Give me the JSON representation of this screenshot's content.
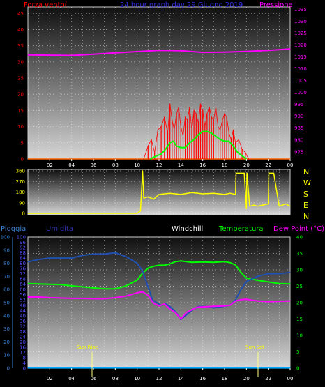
{
  "header": {
    "left_label": "Forza vento(",
    "title": "24 hour graph day 29 Giugno 2019",
    "right_label": "Pressione"
  },
  "legend": {
    "pioggia": "Pioggia",
    "umidita": "Umidita",
    "windchill": "Windchill",
    "temperatura": "Temperatura",
    "dew_point": "Dew Point (°C)"
  },
  "markers": {
    "sun_rise": "Sun Rise",
    "sun_set": "Sun Set"
  },
  "compass_letters": [
    "N",
    "W",
    "S",
    "E",
    "N"
  ],
  "colors": {
    "wind": "#ff0000",
    "wind_avg": "#00ff00",
    "pressure": "#ff00ff",
    "wind_dir": "#ffff00",
    "humidity": "#2050b0",
    "temperature": "#00ff00",
    "dew_point": "#ff00ff",
    "windchill": "#ffffff",
    "rain": "#00aaff",
    "rain_axis": "#3a7fd0",
    "hum_axis": "#5050ff"
  },
  "chart_data": [
    {
      "type": "line",
      "name": "wind-pressure",
      "x_ticks": [
        "02",
        "04",
        "06",
        "08",
        "10",
        "12",
        "14",
        "16",
        "18",
        "20",
        "22",
        "00"
      ],
      "y_left": {
        "ticks": [
          0,
          5,
          10,
          15,
          20,
          25,
          30,
          35,
          40,
          45
        ],
        "range": [
          0,
          47
        ]
      },
      "y_right": {
        "ticks": [
          975,
          980,
          985,
          990,
          995,
          1000,
          1005,
          1010,
          1015,
          1020,
          1025,
          1030,
          1035
        ],
        "range": [
          972,
          1036
        ]
      },
      "series": [
        {
          "key": "pressure",
          "axis": "right",
          "x": [
            0,
            2,
            4,
            6,
            8,
            10,
            12,
            14,
            16,
            18,
            20,
            22,
            24
          ],
          "y": [
            1015.8,
            1015.7,
            1015.6,
            1016.1,
            1016.7,
            1017.2,
            1017.7,
            1017.6,
            1016.9,
            1017.0,
            1017.3,
            1017.7,
            1018.3
          ]
        },
        {
          "key": "wind_avg",
          "axis": "left",
          "x": [
            11.2,
            11.8,
            12.2,
            12.6,
            13.0,
            13.3,
            13.6,
            14.0,
            14.4,
            14.8,
            15.2,
            15.6,
            16.0,
            16.4,
            16.8,
            17.2,
            17.6,
            18.0,
            18.4,
            18.8,
            19.2,
            19.6,
            20.0
          ],
          "y": [
            0,
            1,
            1.5,
            3,
            5,
            5.5,
            4,
            3.5,
            3.5,
            5,
            6,
            7.5,
            8.5,
            8.5,
            8,
            7,
            6,
            5.5,
            5.5,
            4,
            2,
            1,
            0
          ]
        },
        {
          "key": "wind",
          "axis": "left",
          "x": [
            10.6,
            11.0,
            11.3,
            11.6,
            11.9,
            12.2,
            12.5,
            12.8,
            13.0,
            13.2,
            13.4,
            13.6,
            13.8,
            14.0,
            14.2,
            14.4,
            14.6,
            14.8,
            15.0,
            15.2,
            15.4,
            15.6,
            15.8,
            16.0,
            16.2,
            16.4,
            16.6,
            16.8,
            17.0,
            17.2,
            17.4,
            17.6,
            17.8,
            18.0,
            18.2,
            18.4,
            18.6,
            18.8,
            19.0,
            19.3,
            19.6,
            19.9,
            20.2
          ],
          "y": [
            0,
            4,
            6,
            2,
            9,
            10,
            13,
            8,
            17,
            12,
            9,
            14,
            16,
            10,
            7,
            13,
            12,
            16,
            9,
            15,
            14,
            11,
            17,
            15,
            10,
            14,
            16,
            13,
            12,
            16,
            10,
            9,
            12,
            14,
            13,
            8,
            6,
            9,
            5,
            6,
            3,
            2,
            0
          ]
        }
      ]
    },
    {
      "type": "line",
      "name": "wind-direction",
      "y_ticks": [
        0,
        90,
        180,
        270,
        360
      ],
      "y_range": [
        0,
        360
      ],
      "series": [
        {
          "key": "wind_dir",
          "x": [
            0,
            10.0,
            10.3,
            10.5,
            10.6,
            11.0,
            11.5,
            12.0,
            13.0,
            14.0,
            15.0,
            16.0,
            17.0,
            18.0,
            18.5,
            19.0,
            19.05,
            19.3,
            19.5,
            19.8,
            20.0,
            20.05,
            20.3,
            20.7,
            21.0,
            21.5,
            22.0,
            22.05,
            22.5,
            23.0,
            23.3,
            23.6,
            24.0
          ],
          "y": [
            0,
            0,
            20,
            360,
            130,
            140,
            120,
            160,
            170,
            160,
            175,
            165,
            170,
            160,
            170,
            160,
            340,
            340,
            340,
            340,
            40,
            340,
            60,
            70,
            60,
            70,
            80,
            340,
            340,
            60,
            70,
            80,
            60
          ]
        }
      ]
    },
    {
      "type": "line",
      "name": "temp-hum-rain",
      "x_ticks": [
        "02",
        "04",
        "06",
        "08",
        "10",
        "12",
        "14",
        "16",
        "18",
        "20",
        "22",
        "00"
      ],
      "y_rain": {
        "ticks": [
          0,
          10,
          20,
          30,
          40,
          50,
          60,
          70,
          80,
          90,
          100
        ],
        "range": [
          0,
          100
        ]
      },
      "y_hum": {
        "ticks": [
          0,
          4,
          8,
          12,
          16,
          20,
          24,
          28,
          32,
          36,
          40,
          44,
          48,
          52,
          56,
          60,
          64,
          68,
          72,
          76,
          80,
          84,
          88,
          92,
          96,
          100
        ],
        "range": [
          0,
          100
        ]
      },
      "y_temp": {
        "ticks": [
          0,
          5,
          10,
          15,
          20,
          25,
          30,
          35,
          40
        ],
        "range": [
          0,
          40
        ]
      },
      "series": [
        {
          "key": "humidity",
          "axis": "hum",
          "x": [
            0,
            1,
            2,
            3,
            4,
            5,
            6,
            7,
            8,
            9,
            10,
            10.5,
            11,
            11.4,
            11.8,
            12.2,
            12.6,
            13.0,
            13.4,
            13.8,
            14.0,
            14.4,
            15.0,
            15.6,
            16.2,
            17.0,
            17.8,
            18.5,
            19.0,
            19.5,
            20.0,
            21.0,
            22.0,
            23.0,
            24.0
          ],
          "y": [
            81,
            83,
            84,
            84,
            84,
            86,
            87,
            87,
            88,
            85,
            80,
            74,
            62,
            52,
            50,
            48,
            49,
            47,
            44,
            40,
            37,
            40,
            44,
            47,
            47,
            46,
            47,
            48,
            52,
            60,
            66,
            70,
            72,
            72,
            73
          ]
        },
        {
          "key": "dew_point",
          "axis": "temp",
          "x": [
            0,
            1,
            2,
            3,
            4,
            5,
            6,
            7,
            8,
            9,
            10,
            10.5,
            11,
            11.5,
            12.0,
            12.5,
            13.0,
            13.5,
            14.0,
            14.5,
            15.0,
            15.5,
            16.0,
            17.0,
            18.0,
            18.5,
            19.0,
            19.5,
            20.0,
            21.0,
            22.0,
            23.0,
            24.0
          ],
          "y": [
            21.7,
            21.7,
            21.5,
            21.4,
            21.3,
            21.3,
            21.2,
            21.2,
            21.5,
            22.0,
            23.0,
            23.3,
            22.2,
            19.8,
            19.0,
            19.6,
            18.0,
            17.0,
            15.0,
            17.0,
            17.8,
            18.6,
            18.7,
            18.9,
            19.0,
            19.2,
            20.5,
            20.9,
            21.0,
            20.5,
            20.3,
            20.4,
            20.5
          ]
        },
        {
          "key": "temperature",
          "axis": "temp",
          "x": [
            0,
            1,
            2,
            3,
            4,
            5,
            6,
            7,
            8,
            9,
            10,
            10.5,
            11,
            11.5,
            12.0,
            12.5,
            13.0,
            13.5,
            14.0,
            14.5,
            15.0,
            16.0,
            17.0,
            18.0,
            18.5,
            19.0,
            19.5,
            20.0,
            21.0,
            22.0,
            23.0,
            24.0
          ],
          "y": [
            25.8,
            25.7,
            25.6,
            25.5,
            25.1,
            24.8,
            24.5,
            24.2,
            24.2,
            25.1,
            26.9,
            29.0,
            30.5,
            31.1,
            31.4,
            31.4,
            31.8,
            32.5,
            32.7,
            32.5,
            32.3,
            32.4,
            32.3,
            32.5,
            32.2,
            31.5,
            29.2,
            27.5,
            26.8,
            26.3,
            25.8,
            25.7
          ]
        },
        {
          "key": "rain",
          "axis": "rain",
          "x": [
            0,
            24
          ],
          "y": [
            0.3,
            0.3
          ]
        }
      ]
    }
  ]
}
